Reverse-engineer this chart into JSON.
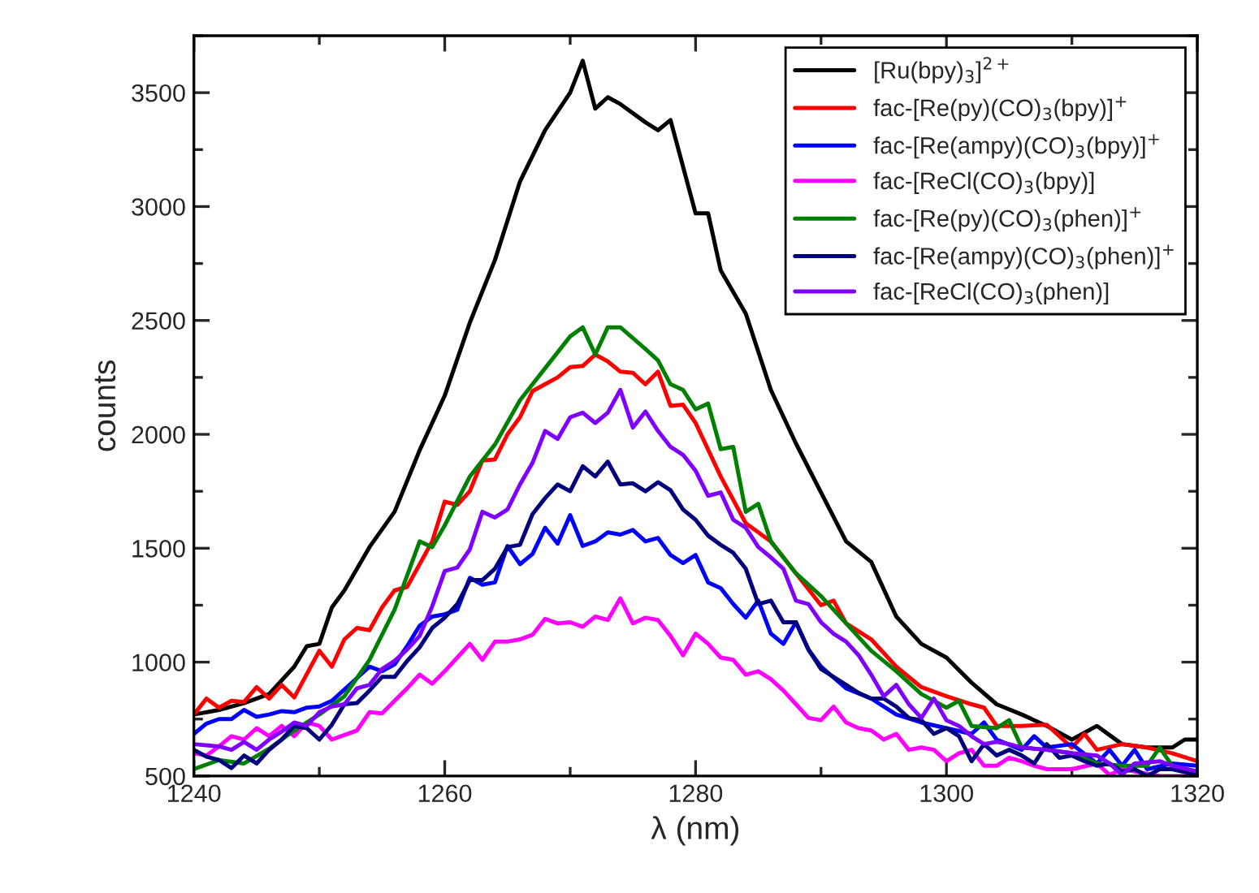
{
  "chart_data": {
    "type": "line",
    "xlabel": "λ (nm)",
    "ylabel": "counts",
    "xlim": [
      1240,
      1320
    ],
    "xticks": [
      1240,
      1260,
      1280,
      1300,
      1320
    ],
    "ylim": [
      500,
      3750
    ],
    "yticks": [
      500,
      1000,
      1500,
      2000,
      2500,
      3000,
      3500
    ],
    "grid": false,
    "legend": "top right",
    "marker": "none",
    "line_style": "solid",
    "series": [
      {
        "name": "[Ru(bpy)$_{3}$]$^{2+}$",
        "color": "#000000",
        "x": [
          1240,
          1242,
          1244,
          1246,
          1248,
          1249,
          1250,
          1251,
          1252,
          1254,
          1256,
          1258,
          1260,
          1262,
          1264,
          1266,
          1268,
          1270,
          1271,
          1272,
          1273,
          1274,
          1276,
          1277,
          1278,
          1280,
          1281,
          1282,
          1284,
          1286,
          1288,
          1290,
          1292,
          1294,
          1296,
          1298,
          1300,
          1302,
          1304,
          1306,
          1308,
          1310,
          1312,
          1314,
          1316,
          1318,
          1319,
          1320
        ],
        "values": [
          770,
          790,
          820,
          860,
          980,
          1070,
          1080,
          1240,
          1315,
          1505,
          1660,
          1930,
          2170,
          2490,
          2765,
          3110,
          3335,
          3500,
          3640,
          3430,
          3480,
          3450,
          3370,
          3335,
          3380,
          2970,
          2970,
          2720,
          2530,
          2195,
          1960,
          1745,
          1530,
          1440,
          1200,
          1080,
          1020,
          910,
          815,
          770,
          720,
          660,
          720,
          640,
          625,
          625,
          660,
          660
        ]
      },
      {
        "name": "fac-[Re(py)(CO)$_{3}$(bpy)]$^{+}$",
        "color": "#ff0000",
        "x": [
          1240,
          1241,
          1242,
          1243,
          1244,
          1245,
          1246,
          1247,
          1248,
          1250,
          1251,
          1252,
          1253,
          1254,
          1255,
          1256,
          1257,
          1258,
          1259,
          1260,
          1261,
          1262,
          1263,
          1264,
          1265,
          1266,
          1267,
          1268,
          1269,
          1270,
          1271,
          1272,
          1273,
          1274,
          1275,
          1276,
          1277,
          1278,
          1279,
          1280,
          1282,
          1284,
          1286,
          1288,
          1290,
          1291,
          1292,
          1294,
          1296,
          1298,
          1300,
          1302,
          1303,
          1304,
          1306,
          1308,
          1310,
          1311,
          1312,
          1314,
          1316,
          1318,
          1320
        ],
        "values": [
          770,
          840,
          800,
          830,
          825,
          890,
          840,
          900,
          845,
          1050,
          980,
          1100,
          1150,
          1140,
          1240,
          1315,
          1330,
          1430,
          1530,
          1705,
          1690,
          1750,
          1885,
          1890,
          2000,
          2075,
          2190,
          2220,
          2250,
          2295,
          2300,
          2350,
          2320,
          2275,
          2270,
          2220,
          2275,
          2125,
          2130,
          2050,
          1815,
          1610,
          1530,
          1390,
          1250,
          1270,
          1170,
          1100,
          980,
          890,
          850,
          815,
          800,
          720,
          720,
          725,
          625,
          685,
          615,
          640,
          625,
          600,
          565
        ]
      },
      {
        "name": "fac-[Re(ampy)(CO)$_{3}$(bpy)]$^{+}$",
        "color": "#0000ff",
        "x": [
          1240,
          1241,
          1242,
          1243,
          1244,
          1245,
          1246,
          1247,
          1248,
          1249,
          1250,
          1251,
          1252,
          1253,
          1254,
          1255,
          1256,
          1257,
          1258,
          1259,
          1260,
          1261,
          1262,
          1263,
          1264,
          1265,
          1266,
          1267,
          1268,
          1269,
          1270,
          1271,
          1272,
          1273,
          1274,
          1275,
          1276,
          1277,
          1278,
          1279,
          1280,
          1281,
          1282,
          1283,
          1284,
          1285,
          1286,
          1287,
          1288,
          1289,
          1290,
          1292,
          1294,
          1296,
          1298,
          1300,
          1302,
          1303,
          1304,
          1306,
          1307,
          1308,
          1310,
          1312,
          1313,
          1314,
          1315,
          1316,
          1318,
          1320
        ],
        "values": [
          685,
          730,
          750,
          750,
          790,
          760,
          770,
          785,
          780,
          800,
          805,
          830,
          880,
          930,
          980,
          960,
          990,
          1070,
          1160,
          1200,
          1210,
          1230,
          1370,
          1340,
          1350,
          1510,
          1430,
          1475,
          1590,
          1520,
          1645,
          1510,
          1530,
          1570,
          1560,
          1580,
          1530,
          1545,
          1470,
          1435,
          1470,
          1350,
          1325,
          1255,
          1195,
          1270,
          1125,
          1080,
          1175,
          1055,
          980,
          885,
          840,
          770,
          735,
          710,
          685,
          735,
          660,
          615,
          675,
          625,
          640,
          555,
          615,
          545,
          615,
          530,
          555,
          545
        ]
      },
      {
        "name": "fac-[ReCl(CO)$_{3}$(bpy)]",
        "color": "#ff00ff",
        "x": [
          1240,
          1241,
          1242,
          1243,
          1244,
          1245,
          1246,
          1247,
          1248,
          1249,
          1250,
          1251,
          1252,
          1253,
          1254,
          1255,
          1256,
          1257,
          1258,
          1259,
          1260,
          1261,
          1262,
          1263,
          1264,
          1265,
          1266,
          1267,
          1268,
          1269,
          1270,
          1271,
          1272,
          1273,
          1274,
          1275,
          1276,
          1277,
          1278,
          1279,
          1280,
          1281,
          1282,
          1283,
          1284,
          1285,
          1286,
          1287,
          1288,
          1289,
          1290,
          1291,
          1292,
          1293,
          1294,
          1295,
          1296,
          1297,
          1298,
          1299,
          1300,
          1301,
          1302,
          1303,
          1304,
          1305,
          1306,
          1307,
          1308,
          1310,
          1312,
          1313,
          1314,
          1315,
          1317,
          1320
        ],
        "values": [
          600,
          590,
          630,
          675,
          660,
          710,
          675,
          720,
          675,
          735,
          720,
          660,
          680,
          700,
          780,
          775,
          830,
          885,
          945,
          905,
          960,
          1020,
          1080,
          1010,
          1090,
          1090,
          1100,
          1120,
          1190,
          1170,
          1175,
          1155,
          1200,
          1185,
          1280,
          1170,
          1195,
          1185,
          1115,
          1030,
          1125,
          1080,
          1020,
          1010,
          945,
          960,
          925,
          875,
          815,
          755,
          745,
          805,
          735,
          710,
          700,
          660,
          685,
          615,
          625,
          615,
          565,
          600,
          615,
          545,
          545,
          580,
          565,
          545,
          530,
          530,
          555,
          505,
          530,
          520,
          500,
          500
        ]
      },
      {
        "name": "fac-[Re(py)(CO)$_{3}$(phen)]$^{+}$",
        "color": "#008000",
        "x": [
          1240,
          1242,
          1244,
          1246,
          1248,
          1250,
          1252,
          1254,
          1256,
          1258,
          1259,
          1260,
          1262,
          1264,
          1266,
          1268,
          1270,
          1271,
          1272,
          1273,
          1274,
          1276,
          1277,
          1278,
          1279,
          1280,
          1281,
          1282,
          1283,
          1284,
          1285,
          1286,
          1288,
          1290,
          1292,
          1294,
          1296,
          1298,
          1300,
          1301,
          1302,
          1304,
          1305,
          1306,
          1308,
          1310,
          1312,
          1314,
          1316,
          1317,
          1318,
          1320
        ],
        "values": [
          530,
          570,
          555,
          620,
          700,
          770,
          850,
          1010,
          1230,
          1530,
          1505,
          1600,
          1815,
          1955,
          2150,
          2290,
          2430,
          2470,
          2350,
          2470,
          2470,
          2375,
          2325,
          2220,
          2195,
          2110,
          2135,
          1935,
          1945,
          1660,
          1695,
          1530,
          1390,
          1290,
          1170,
          1050,
          960,
          860,
          800,
          830,
          720,
          710,
          745,
          625,
          615,
          600,
          555,
          545,
          545,
          625,
          545,
          500
        ]
      },
      {
        "name": "fac-[Re(ampy)(CO)$_{3}$(phen)]$^{+}$",
        "color": "#00007f",
        "x": [
          1240,
          1241,
          1242,
          1243,
          1244,
          1245,
          1246,
          1247,
          1248,
          1249,
          1250,
          1251,
          1252,
          1253,
          1254,
          1255,
          1256,
          1257,
          1258,
          1259,
          1260,
          1261,
          1262,
          1263,
          1264,
          1265,
          1266,
          1267,
          1268,
          1269,
          1270,
          1271,
          1272,
          1273,
          1274,
          1275,
          1276,
          1277,
          1278,
          1279,
          1280,
          1281,
          1282,
          1283,
          1284,
          1285,
          1286,
          1287,
          1288,
          1289,
          1290,
          1291,
          1292,
          1293,
          1294,
          1295,
          1296,
          1297,
          1298,
          1299,
          1300,
          1301,
          1302,
          1303,
          1304,
          1305,
          1306,
          1307,
          1308,
          1309,
          1310,
          1311,
          1312,
          1313,
          1314,
          1315,
          1316,
          1317,
          1318,
          1320
        ],
        "values": [
          615,
          585,
          570,
          535,
          590,
          555,
          615,
          660,
          720,
          710,
          660,
          725,
          815,
          820,
          875,
          935,
          935,
          1005,
          1065,
          1150,
          1195,
          1255,
          1360,
          1360,
          1410,
          1505,
          1515,
          1650,
          1720,
          1780,
          1750,
          1860,
          1815,
          1880,
          1780,
          1785,
          1750,
          1790,
          1755,
          1670,
          1625,
          1555,
          1515,
          1480,
          1410,
          1255,
          1270,
          1175,
          1175,
          1055,
          970,
          935,
          900,
          865,
          840,
          840,
          805,
          755,
          745,
          685,
          710,
          675,
          565,
          640,
          590,
          615,
          590,
          555,
          640,
          580,
          590,
          565,
          545,
          555,
          520,
          530,
          500,
          530,
          530,
          505
        ]
      },
      {
        "name": "fac-[ReCl(CO)$_{3}$(phen)]",
        "color": "#7f00ff",
        "x": [
          1240,
          1242,
          1243,
          1244,
          1245,
          1246,
          1247,
          1248,
          1249,
          1250,
          1251,
          1252,
          1253,
          1254,
          1255,
          1256,
          1257,
          1258,
          1259,
          1260,
          1261,
          1262,
          1263,
          1264,
          1265,
          1266,
          1267,
          1268,
          1269,
          1270,
          1271,
          1272,
          1273,
          1274,
          1275,
          1276,
          1277,
          1278,
          1279,
          1280,
          1281,
          1282,
          1283,
          1284,
          1285,
          1286,
          1287,
          1288,
          1289,
          1290,
          1291,
          1292,
          1293,
          1294,
          1295,
          1296,
          1297,
          1298,
          1299,
          1300,
          1301,
          1302,
          1303,
          1304,
          1305,
          1306,
          1308,
          1310,
          1312,
          1313,
          1314,
          1315,
          1317,
          1318,
          1320
        ],
        "values": [
          640,
          630,
          615,
          650,
          615,
          660,
          695,
          735,
          720,
          780,
          805,
          815,
          885,
          900,
          970,
          1005,
          1055,
          1115,
          1245,
          1400,
          1415,
          1495,
          1660,
          1635,
          1670,
          1780,
          1875,
          2015,
          1980,
          2075,
          2095,
          2050,
          2095,
          2195,
          2030,
          2100,
          2015,
          1945,
          1910,
          1840,
          1730,
          1745,
          1625,
          1590,
          1505,
          1460,
          1410,
          1270,
          1255,
          1175,
          1125,
          1090,
          1030,
          945,
          850,
          900,
          815,
          755,
          840,
          745,
          720,
          675,
          640,
          650,
          640,
          625,
          615,
          600,
          590,
          555,
          505,
          555,
          565,
          545,
          520
        ]
      }
    ]
  }
}
